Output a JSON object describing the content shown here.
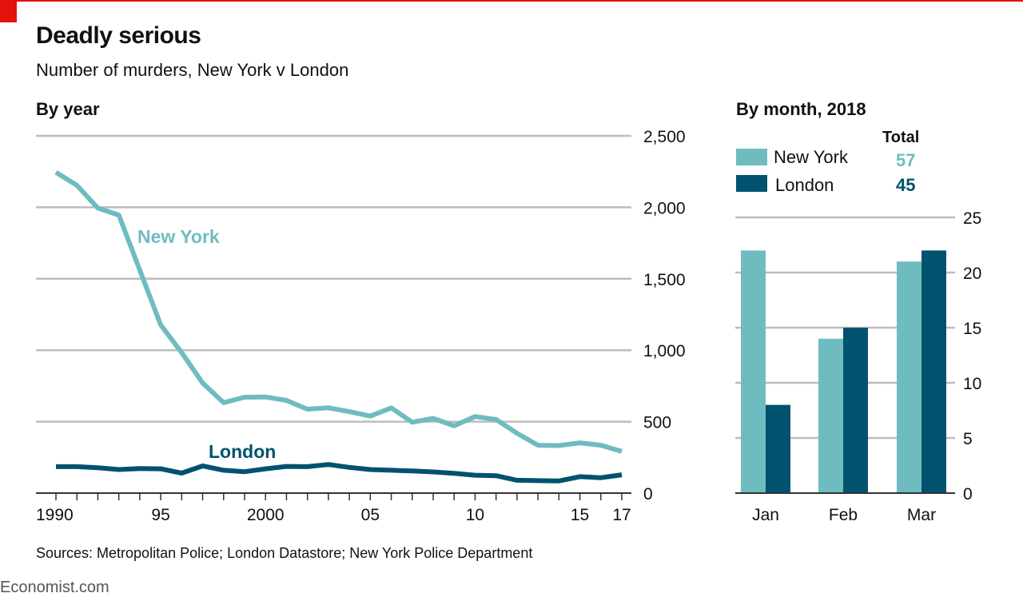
{
  "title": "Deadly serious",
  "subtitle": "Number of murders, New York v London",
  "source": "Sources: Metropolitan Police; London Datastore; New York Police Department",
  "brand": "Economist.com",
  "colors": {
    "new_york": "#6fbcc0",
    "london": "#00526e",
    "accent": "#e3120b",
    "grid": "#bdbdbd"
  },
  "chart_data": [
    {
      "type": "line",
      "title": "By year",
      "ylim": [
        0,
        2500
      ],
      "yticks": [
        "0",
        "500",
        "1,000",
        "1,500",
        "2,000",
        "2,500"
      ],
      "ytick_values": [
        0,
        500,
        1000,
        1500,
        2000,
        2500
      ],
      "xticks": [
        "1990",
        "95",
        "2000",
        "05",
        "10",
        "15",
        "17"
      ],
      "xtick_values": [
        1990,
        1995,
        2000,
        2005,
        2010,
        2015,
        2017
      ],
      "x": [
        1990,
        1991,
        1992,
        1993,
        1994,
        1995,
        1996,
        1997,
        1998,
        1999,
        2000,
        2001,
        2002,
        2003,
        2004,
        2005,
        2006,
        2007,
        2008,
        2009,
        2010,
        2011,
        2012,
        2013,
        2014,
        2015,
        2016,
        2017
      ],
      "series": [
        {
          "name": "New York",
          "color": "#6fbcc0",
          "values": [
            2245,
            2154,
            1995,
            1946,
            1561,
            1177,
            983,
            770,
            633,
            671,
            673,
            649,
            587,
            597,
            570,
            539,
            596,
            496,
            523,
            471,
            536,
            515,
            419,
            335,
            333,
            352,
            335,
            292
          ]
        },
        {
          "name": "London",
          "color": "#00526e",
          "values": [
            185,
            185,
            178,
            165,
            172,
            170,
            140,
            190,
            160,
            150,
            170,
            187,
            185,
            200,
            180,
            165,
            160,
            155,
            148,
            138,
            125,
            122,
            90,
            87,
            85,
            115,
            108,
            128
          ]
        }
      ],
      "grid": true
    },
    {
      "type": "bar",
      "title": "By month, 2018",
      "categories": [
        "Jan",
        "Feb",
        "Mar"
      ],
      "ylim": [
        0,
        25
      ],
      "yticks": [
        "0",
        "5",
        "10",
        "15",
        "20",
        "25"
      ],
      "ytick_values": [
        0,
        5,
        10,
        15,
        20,
        25
      ],
      "legend_header": "Total",
      "series": [
        {
          "name": "New York",
          "color": "#6fbcc0",
          "values": [
            22,
            14,
            21
          ],
          "total": "57"
        },
        {
          "name": "London",
          "color": "#00526e",
          "values": [
            8,
            15,
            22
          ],
          "total": "45"
        }
      ],
      "grid": true,
      "legend": "top-left"
    }
  ]
}
